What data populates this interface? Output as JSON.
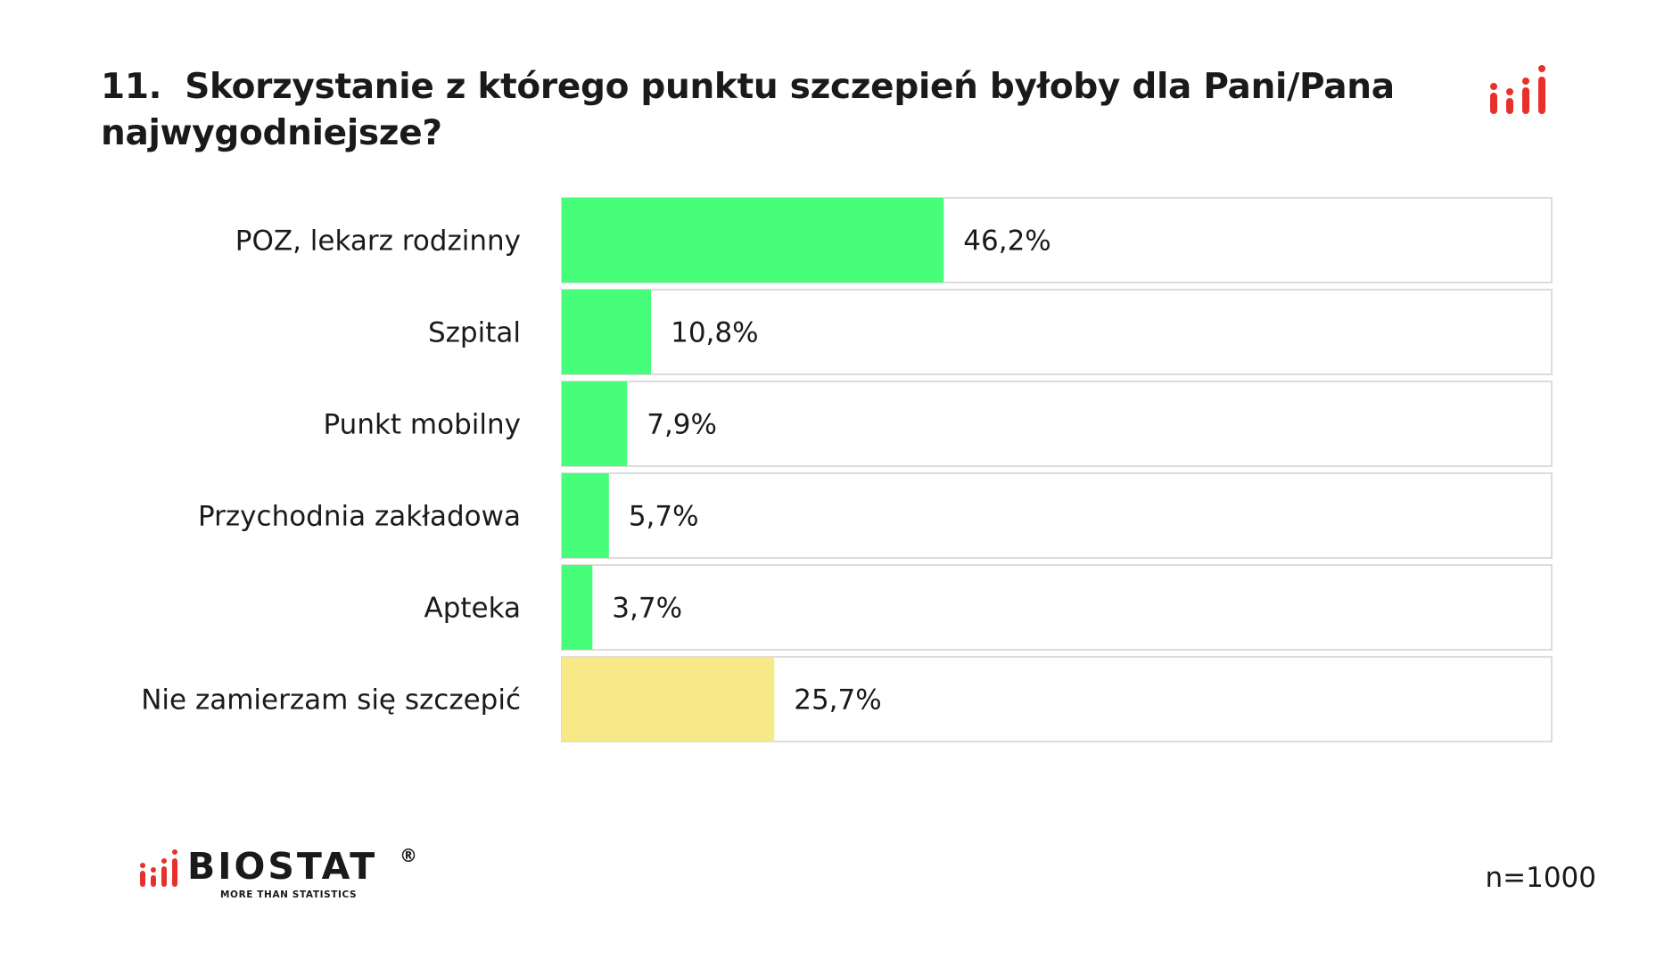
{
  "header": {
    "number": "11.",
    "question": "Skorzystanie z którego punktu szczepień byłoby dla Pani/Pana najwygodniejsze?"
  },
  "chart_data": {
    "type": "bar",
    "orientation": "horizontal",
    "categories": [
      "POZ, lekarz rodzinny",
      "Szpital",
      "Punkt mobilny",
      "Przychodnia zakładowa",
      "Apteka",
      "Nie zamierzam się szczepić"
    ],
    "values": [
      46.2,
      10.8,
      7.9,
      5.7,
      3.7,
      25.7
    ],
    "value_labels": [
      "46,2%",
      "10,8%",
      "7,9%",
      "5,7%",
      "3,7%",
      "25,7%"
    ],
    "bar_colors": [
      "#47FE7A",
      "#47FE7A",
      "#47FE7A",
      "#47FE7A",
      "#47FE7A",
      "#F7E987"
    ],
    "xlim": [
      0,
      100
    ],
    "grid": false,
    "legend": "none"
  },
  "colors": {
    "bar_green": "#47FE7A",
    "bar_yellow": "#F7E987",
    "track_border": "#dcdcdc",
    "brand_red": "#e8302a"
  },
  "brand": {
    "name": "BIOSTAT",
    "registered": "®",
    "tagline": "MORE THAN STATISTICS"
  },
  "footer": {
    "sample": "n=1000"
  },
  "icons": {
    "corner": "bar-chart-logo-icon",
    "brand": "bar-chart-logo-icon"
  }
}
